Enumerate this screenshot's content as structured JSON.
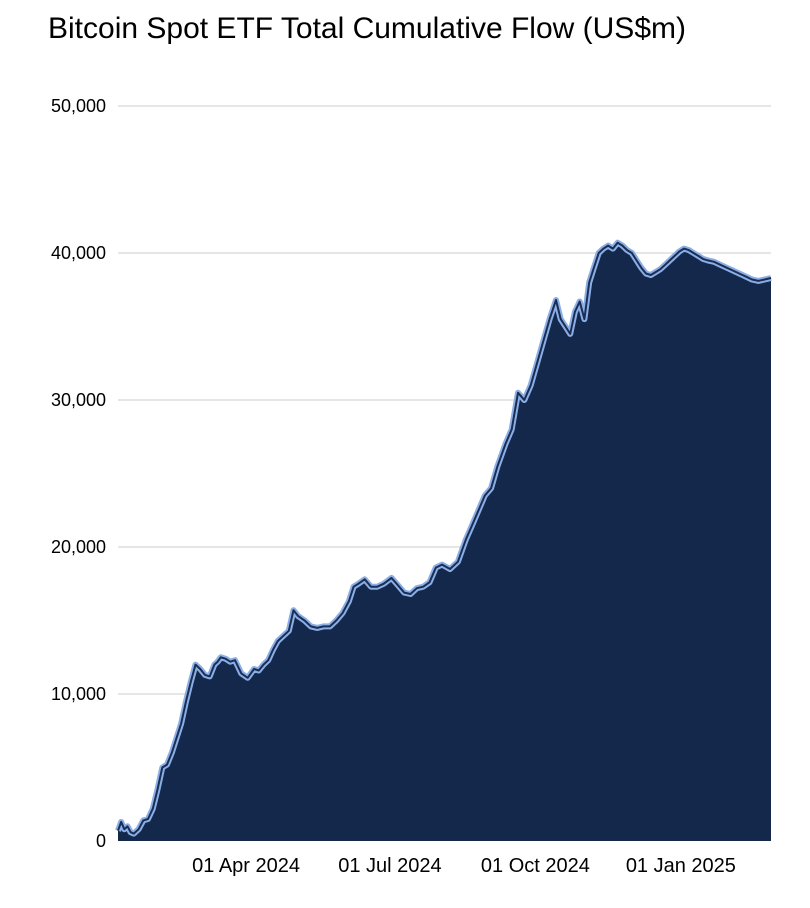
{
  "chart_data": {
    "type": "area",
    "title": "Bitcoin Spot ETF Total Cumulative Flow (US$m)",
    "xlabel": "",
    "ylabel": "",
    "ylim": [
      0,
      50000
    ],
    "y_ticks": [
      0,
      10000,
      20000,
      30000,
      40000,
      50000
    ],
    "y_tick_labels": [
      "0",
      "10,000",
      "20,000",
      "30,000",
      "40,000",
      "50,000"
    ],
    "x_range": [
      "2024-01-11",
      "2025-02-27"
    ],
    "x_ticks": [
      "2024-04-01",
      "2024-07-01",
      "2024-10-01",
      "2025-01-01"
    ],
    "x_tick_labels": [
      "01 Apr 2024",
      "01 Jul 2024",
      "01 Oct 2024",
      "01 Jan 2025"
    ],
    "grid": true,
    "legend": "none",
    "colors": {
      "fill": "#13284b",
      "line_outer": "#8aaee6",
      "line_inner": "#1b2d52",
      "grid": "#cccccc"
    },
    "series": [
      {
        "x": [
          "2024-01-11",
          "2024-01-13",
          "2024-01-15",
          "2024-01-17",
          "2024-01-19",
          "2024-01-21",
          "2024-01-24",
          "2024-01-27",
          "2024-01-30",
          "2024-02-02",
          "2024-02-05",
          "2024-02-08",
          "2024-02-11",
          "2024-02-14",
          "2024-02-17",
          "2024-02-20",
          "2024-02-23",
          "2024-02-26",
          "2024-02-29",
          "2024-03-03",
          "2024-03-06",
          "2024-03-09",
          "2024-03-12",
          "2024-03-14",
          "2024-03-16",
          "2024-03-19",
          "2024-03-22",
          "2024-03-25",
          "2024-03-29",
          "2024-04-02",
          "2024-04-06",
          "2024-04-09",
          "2024-04-12",
          "2024-04-15",
          "2024-04-18",
          "2024-04-21",
          "2024-04-24",
          "2024-04-28",
          "2024-05-01",
          "2024-05-04",
          "2024-05-08",
          "2024-05-12",
          "2024-05-16",
          "2024-05-20",
          "2024-05-24",
          "2024-05-28",
          "2024-06-01",
          "2024-06-05",
          "2024-06-08",
          "2024-06-11",
          "2024-06-15",
          "2024-06-19",
          "2024-06-23",
          "2024-06-27",
          "2024-07-02",
          "2024-07-06",
          "2024-07-10",
          "2024-07-14",
          "2024-07-18",
          "2024-07-22",
          "2024-07-26",
          "2024-07-30",
          "2024-08-03",
          "2024-08-08",
          "2024-08-13",
          "2024-08-18",
          "2024-08-22",
          "2024-08-26",
          "2024-08-30",
          "2024-09-03",
          "2024-09-07",
          "2024-09-12",
          "2024-09-16",
          "2024-09-20",
          "2024-09-24",
          "2024-09-28",
          "2024-10-02",
          "2024-10-06",
          "2024-10-10",
          "2024-10-14",
          "2024-10-17",
          "2024-10-20",
          "2024-10-23",
          "2024-10-26",
          "2024-10-29",
          "2024-11-01",
          "2024-11-04",
          "2024-11-07",
          "2024-11-10",
          "2024-11-13",
          "2024-11-16",
          "2024-11-19",
          "2024-11-22",
          "2024-11-25",
          "2024-11-28",
          "2024-12-01",
          "2024-12-04",
          "2024-12-07",
          "2024-12-10",
          "2024-12-13",
          "2024-12-16",
          "2024-12-19",
          "2024-12-22",
          "2024-12-25",
          "2024-12-28",
          "2024-12-31",
          "2025-01-03",
          "2025-01-06",
          "2025-01-09",
          "2025-01-12",
          "2025-01-15",
          "2025-01-18",
          "2025-01-22",
          "2025-01-26",
          "2025-01-30",
          "2025-02-03",
          "2025-02-07",
          "2025-02-11",
          "2025-02-15",
          "2025-02-19",
          "2025-02-23",
          "2025-02-27"
        ],
        "values": [
          700,
          1300,
          800,
          1000,
          600,
          500,
          800,
          1400,
          1500,
          2200,
          3500,
          5000,
          5200,
          6000,
          7000,
          8000,
          9500,
          10800,
          12000,
          11700,
          11300,
          11200,
          12000,
          12200,
          12500,
          12400,
          12200,
          12300,
          11400,
          11100,
          11700,
          11600,
          12000,
          12300,
          13000,
          13600,
          13900,
          14300,
          15700,
          15300,
          15000,
          14600,
          14500,
          14600,
          14600,
          15000,
          15500,
          16300,
          17300,
          17500,
          17800,
          17300,
          17300,
          17500,
          17900,
          17400,
          16900,
          16800,
          17200,
          17300,
          17600,
          18600,
          18800,
          18500,
          19000,
          20500,
          21500,
          22500,
          23500,
          24000,
          25500,
          27000,
          28000,
          30500,
          30000,
          31000,
          32500,
          34000,
          35500,
          36800,
          35500,
          35000,
          34500,
          36000,
          36700,
          35500,
          38000,
          39000,
          40000,
          40300,
          40500,
          40300,
          40700,
          40500,
          40200,
          40000,
          39500,
          39000,
          38600,
          38500,
          38700,
          38900,
          39200,
          39500,
          39800,
          40100,
          40300,
          40200,
          40000,
          39800,
          39600,
          39500,
          39400,
          39200,
          39000,
          38800,
          38600,
          38400,
          38200,
          38100,
          38200,
          38300
        ]
      }
    ]
  }
}
